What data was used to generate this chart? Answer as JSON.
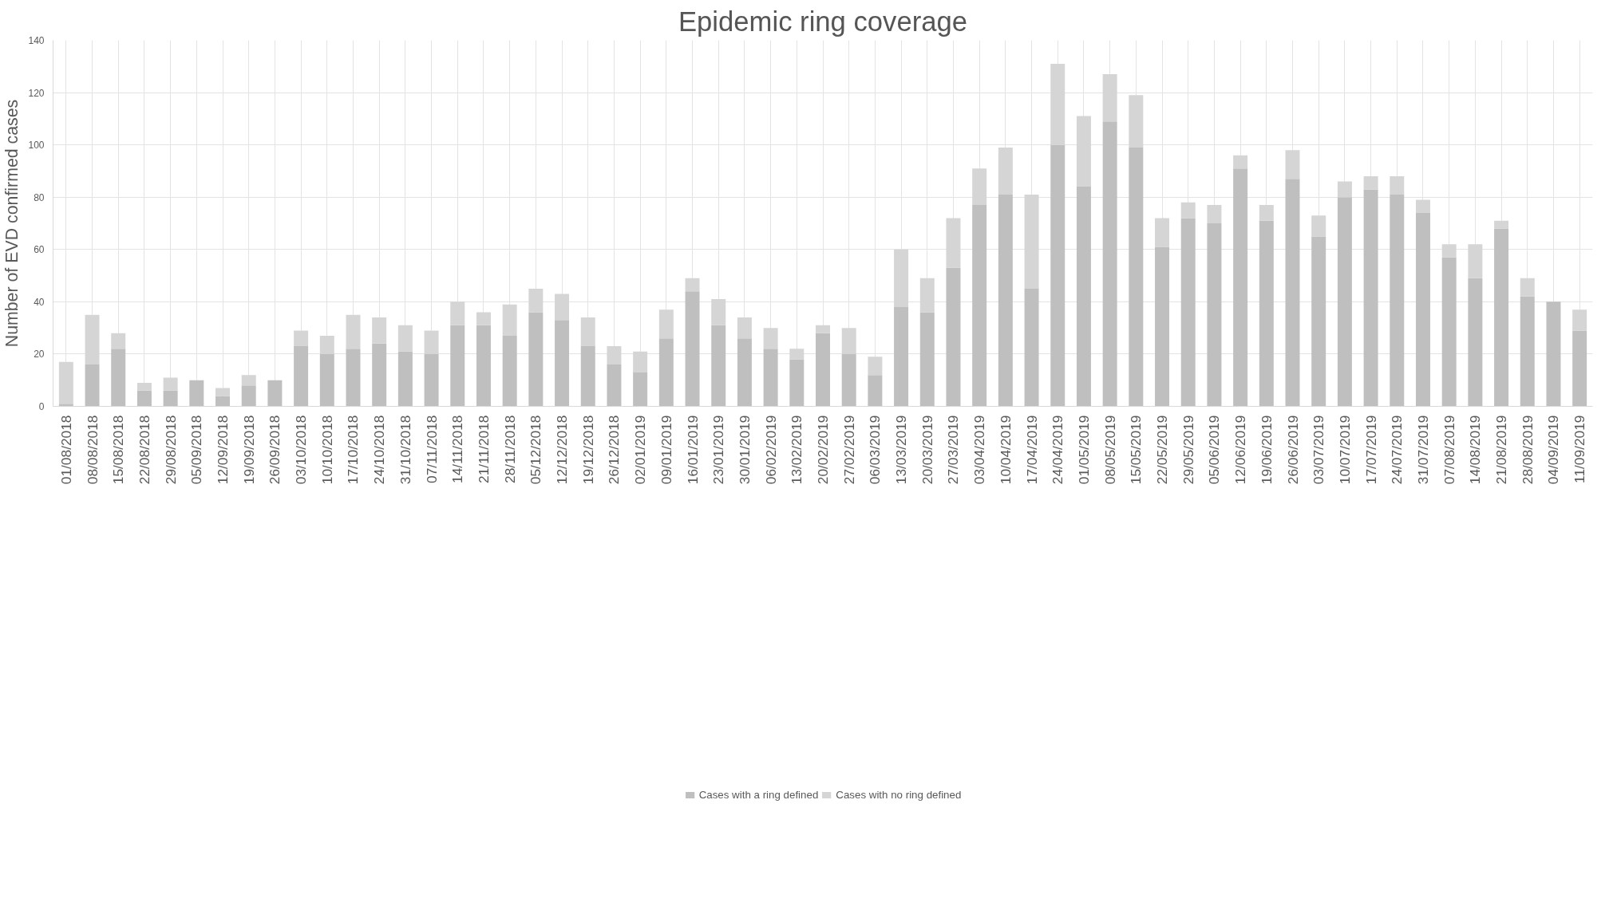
{
  "chart_data": {
    "type": "bar",
    "title": "Epidemic ring coverage",
    "ylabel": "Number of EVD confirmed cases",
    "categories": [
      "01/08/2018",
      "08/08/2018",
      "15/08/2018",
      "22/08/2018",
      "29/08/2018",
      "05/09/2018",
      "12/09/2018",
      "19/09/2018",
      "26/09/2018",
      "03/10/2018",
      "10/10/2018",
      "17/10/2018",
      "24/10/2018",
      "31/10/2018",
      "07/11/2018",
      "14/11/2018",
      "21/11/2018",
      "28/11/2018",
      "05/12/2018",
      "12/12/2018",
      "19/12/2018",
      "26/12/2018",
      "02/01/2019",
      "09/01/2019",
      "16/01/2019",
      "23/01/2019",
      "30/01/2019",
      "06/02/2019",
      "13/02/2019",
      "20/02/2019",
      "27/02/2019",
      "06/03/2019",
      "13/03/2019",
      "20/03/2019",
      "27/03/2019",
      "03/04/2019",
      "10/04/2019",
      "17/04/2019",
      "24/04/2019",
      "01/05/2019",
      "08/05/2019",
      "15/05/2019",
      "22/05/2019",
      "29/05/2019",
      "05/06/2019",
      "12/06/2019",
      "19/06/2019",
      "26/06/2019",
      "03/07/2019",
      "10/07/2019",
      "17/07/2019",
      "24/07/2019",
      "31/07/2019",
      "07/08/2019",
      "14/08/2019",
      "21/08/2019",
      "28/08/2019",
      "04/09/2019",
      "11/09/2019"
    ],
    "stacked": true,
    "series": [
      {
        "name": "Cases with a ring defined",
        "color": "#bfbfbf",
        "values": [
          1,
          16,
          22,
          6,
          6,
          10,
          4,
          8,
          10,
          23,
          20,
          22,
          24,
          21,
          20,
          31,
          31,
          27,
          36,
          33,
          23,
          16,
          13,
          26,
          44,
          31,
          26,
          22,
          18,
          28,
          20,
          12,
          38,
          36,
          53,
          77,
          81,
          45,
          100,
          84,
          109,
          99,
          61,
          72,
          70,
          91,
          71,
          87,
          65,
          80,
          83,
          81,
          74,
          57,
          49,
          68,
          42,
          40,
          29
        ]
      },
      {
        "name": "Cases with no ring defined",
        "color": "#d5d5d5",
        "values": [
          16,
          19,
          6,
          3,
          5,
          0,
          3,
          4,
          0,
          6,
          7,
          13,
          10,
          10,
          9,
          9,
          5,
          12,
          9,
          10,
          11,
          7,
          8,
          11,
          5,
          10,
          8,
          8,
          4,
          3,
          10,
          7,
          22,
          13,
          19,
          14,
          18,
          36,
          31,
          27,
          18,
          20,
          11,
          6,
          7,
          5,
          6,
          11,
          8,
          6,
          5,
          7,
          5,
          5,
          13,
          3,
          7,
          0,
          8
        ]
      }
    ],
    "ylim": [
      0,
      140
    ],
    "yticks": [
      0,
      20,
      40,
      60,
      80,
      100,
      120,
      140
    ],
    "grid": true,
    "legend": "bottom"
  }
}
